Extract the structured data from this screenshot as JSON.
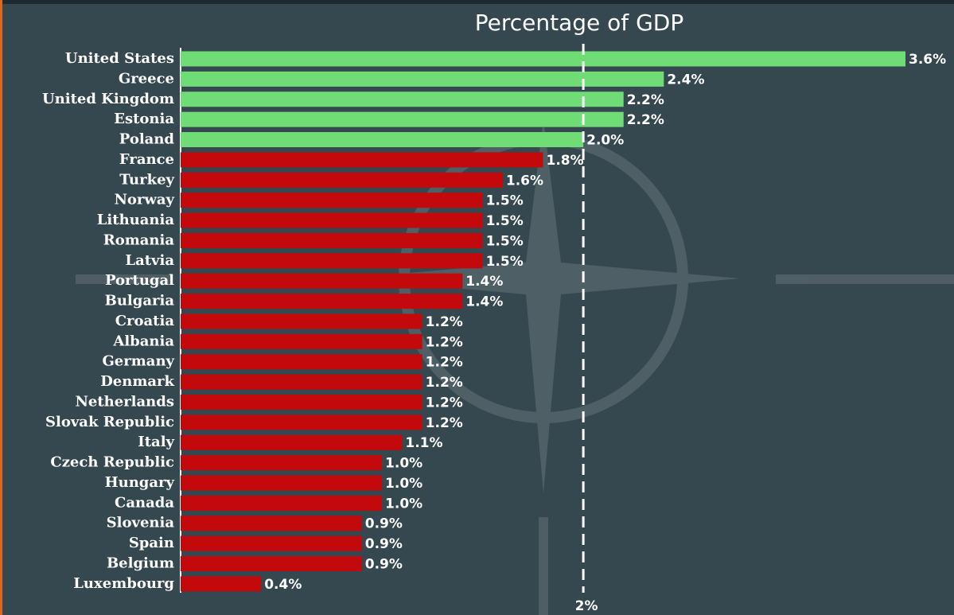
{
  "chart_data": {
    "type": "hbar",
    "title": "Percentage of GDP",
    "categories": [
      "United States",
      "Greece",
      "United Kingdom",
      "Estonia",
      "Poland",
      "France",
      "Turkey",
      "Norway",
      "Lithuania",
      "Romania",
      "Latvia",
      "Portugal",
      "Bulgaria",
      "Croatia",
      "Albania",
      "Germany",
      "Denmark",
      "Netherlands",
      "Slovak Republic",
      "Italy",
      "Czech Republic",
      "Hungary",
      "Canada",
      "Slovenia",
      "Spain",
      "Belgium",
      "Luxembourg"
    ],
    "values": [
      3.6,
      2.4,
      2.2,
      2.2,
      2.0,
      1.8,
      1.6,
      1.5,
      1.5,
      1.5,
      1.5,
      1.4,
      1.4,
      1.2,
      1.2,
      1.2,
      1.2,
      1.2,
      1.2,
      1.1,
      1.0,
      1.0,
      1.0,
      0.9,
      0.9,
      0.9,
      0.4
    ],
    "value_labels": [
      "3.6%",
      "2.4%",
      "2.2%",
      "2.2%",
      "2.0%",
      "1.8%",
      "1.6%",
      "1.5%",
      "1.5%",
      "1.5%",
      "1.5%",
      "1.4%",
      "1.4%",
      "1.2%",
      "1.2%",
      "1.2%",
      "1.2%",
      "1.2%",
      "1.2%",
      "1.1%",
      "1.0%",
      "1.0%",
      "1.0%",
      "0.9%",
      "0.9%",
      "0.9%",
      "0.4%"
    ],
    "colors": [
      "#6fdc76",
      "#6fdc76",
      "#6fdc76",
      "#6fdc76",
      "#6fdc76",
      "#c4090c",
      "#c4090c",
      "#c4090c",
      "#c4090c",
      "#c4090c",
      "#c4090c",
      "#c4090c",
      "#c4090c",
      "#c4090c",
      "#c4090c",
      "#c4090c",
      "#c4090c",
      "#c4090c",
      "#c4090c",
      "#c4090c",
      "#c4090c",
      "#c4090c",
      "#c4090c",
      "#c4090c",
      "#c4090c",
      "#c4090c",
      "#c4090c"
    ],
    "xlim": [
      0,
      3.6
    ],
    "reference_line": {
      "value": 2,
      "label": "2%"
    }
  }
}
